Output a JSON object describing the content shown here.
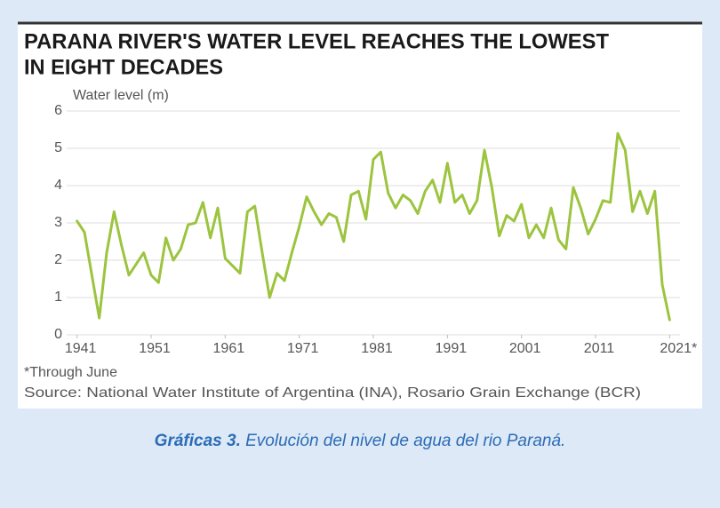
{
  "chart_data": {
    "type": "line",
    "title": [
      "PARANA RIVER'S WATER LEVEL REACHES THE LOWEST",
      "IN EIGHT DECADES"
    ],
    "y_label": "Water level (m)",
    "note": "*Through June",
    "source": "Source: National Water Institute of Argentina (INA), Rosario Grain Exchange (BCR)",
    "x": [
      1941,
      1942,
      1943,
      1944,
      1945,
      1946,
      1947,
      1948,
      1949,
      1950,
      1951,
      1952,
      1953,
      1954,
      1955,
      1956,
      1957,
      1958,
      1959,
      1960,
      1961,
      1962,
      1963,
      1964,
      1965,
      1966,
      1967,
      1968,
      1969,
      1970,
      1971,
      1972,
      1973,
      1974,
      1975,
      1976,
      1977,
      1978,
      1979,
      1980,
      1981,
      1982,
      1983,
      1984,
      1985,
      1986,
      1987,
      1988,
      1989,
      1990,
      1991,
      1992,
      1993,
      1994,
      1995,
      1996,
      1997,
      1998,
      1999,
      2000,
      2001,
      2002,
      2003,
      2004,
      2005,
      2006,
      2007,
      2008,
      2009,
      2010,
      2011,
      2012,
      2013,
      2014,
      2015,
      2016,
      2017,
      2018,
      2019,
      2020,
      2021
    ],
    "values": [
      3.05,
      2.75,
      1.6,
      0.45,
      2.2,
      3.3,
      2.4,
      1.6,
      1.9,
      2.2,
      1.6,
      1.4,
      2.6,
      2.0,
      2.3,
      2.95,
      3.0,
      3.55,
      2.6,
      3.4,
      2.05,
      1.85,
      1.65,
      3.3,
      3.45,
      2.2,
      1.0,
      1.65,
      1.45,
      2.2,
      2.9,
      3.7,
      3.3,
      2.95,
      3.25,
      3.15,
      2.5,
      3.75,
      3.85,
      3.1,
      4.7,
      4.9,
      3.8,
      3.4,
      3.75,
      3.6,
      3.25,
      3.85,
      4.15,
      3.55,
      4.6,
      3.55,
      3.75,
      3.25,
      3.6,
      4.95,
      3.95,
      2.65,
      3.2,
      3.05,
      3.5,
      2.6,
      2.95,
      2.6,
      3.4,
      2.55,
      2.3,
      3.95,
      3.4,
      2.7,
      3.1,
      3.6,
      3.55,
      5.4,
      4.95,
      3.3,
      3.85,
      3.25,
      3.85,
      1.35,
      0.4
    ],
    "color": "#9cc43e",
    "xlim": [
      1939.6,
      2022.4
    ],
    "xticks": [
      1941,
      1951,
      1961,
      1971,
      1981,
      1991,
      2001,
      2011,
      {
        "value": 2021,
        "label": "2021*"
      }
    ],
    "ylim": [
      0,
      6
    ],
    "yticks": [
      0,
      1,
      2,
      3,
      4,
      5,
      6
    ],
    "grid": true
  },
  "caption": {
    "label": "Gráficas 3.",
    "text": "Evolución del nivel de agua del rio Paraná."
  }
}
